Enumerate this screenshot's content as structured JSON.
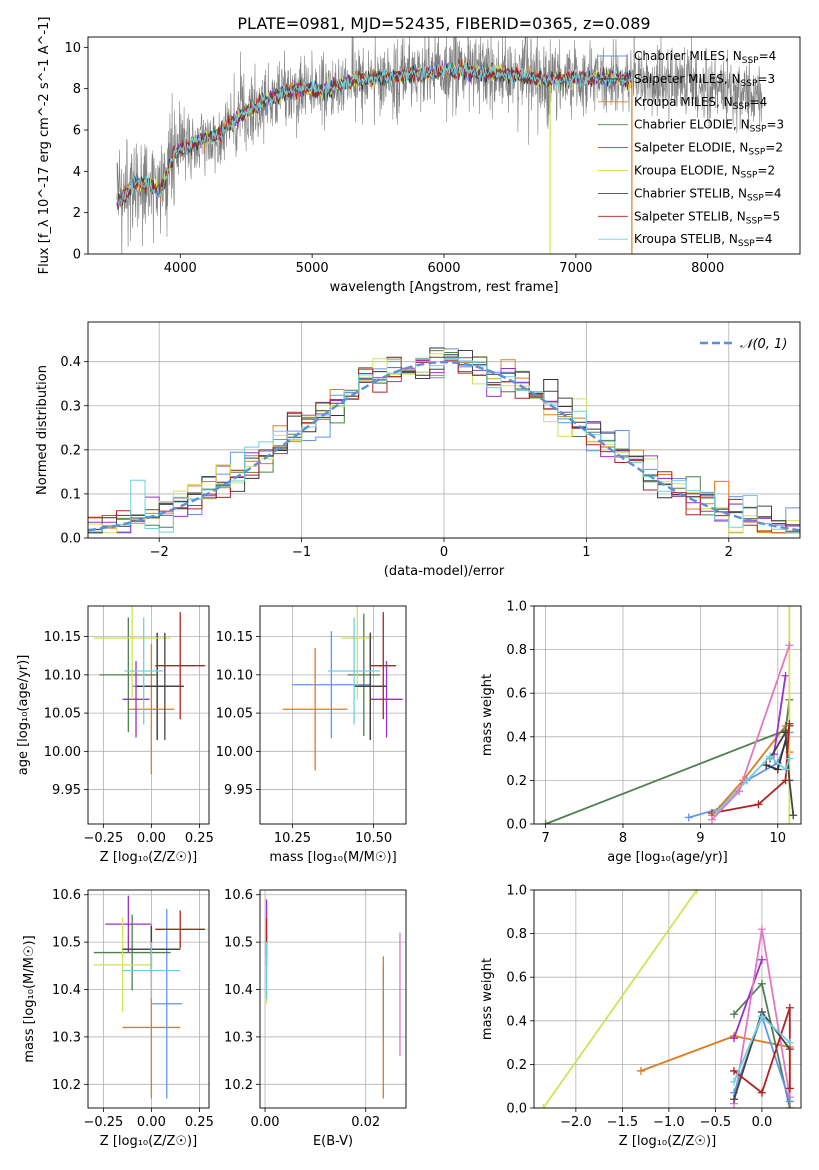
{
  "figure": {
    "title": "PLATE=0981, MJD=52435, FIBERID=0365, z=0.089"
  },
  "models": [
    {
      "key": "chabrier_miles",
      "label": "Chabrier MILES, N",
      "sub": "SSP",
      "n": "=4",
      "color": "#6495ed"
    },
    {
      "key": "salpeter_miles",
      "label": "Salpeter MILES, N",
      "sub": "SSP",
      "n": "=3",
      "color": "#333333"
    },
    {
      "key": "kroupa_miles",
      "label": "Kroupa MILES, N",
      "sub": "SSP",
      "n": "=4",
      "color": "#e07b20"
    },
    {
      "key": "chabrier_elodie",
      "label": "Chabrier ELODIE, N",
      "sub": "SSP",
      "n": "=3",
      "color": "#4f7f4f"
    },
    {
      "key": "salpeter_elodie",
      "label": "Salpeter ELODIE, N",
      "sub": "SSP",
      "n": "=2",
      "color": "#9932cc"
    },
    {
      "key": "kroupa_elodie",
      "label": "Kroupa ELODIE, N",
      "sub": "SSP",
      "n": "=2",
      "color": "#d4e157"
    },
    {
      "key": "chabrier_stelib",
      "label": "Chabrier STELIB, N",
      "sub": "SSP",
      "n": "=4",
      "color": "#444444"
    },
    {
      "key": "salpeter_stelib",
      "label": "Salpeter STELIB, N",
      "sub": "SSP",
      "n": "=5",
      "color": "#b22222"
    },
    {
      "key": "kroupa_stelib",
      "label": "Kroupa STELIB, N",
      "sub": "SSP",
      "n": "=4",
      "color": "#6fd0e0"
    }
  ],
  "chart_data": [
    {
      "id": "spectrum",
      "type": "line",
      "xlabel": "wavelength [Angstrom, rest frame]",
      "ylabel": "Flux [f_λ 10^-17 erg cm^-2 s^-1 A^-1]",
      "xlim": [
        3300,
        8700
      ],
      "ylim": [
        0,
        10.5
      ],
      "xticks": [
        4000,
        5000,
        6000,
        7000,
        8000
      ],
      "yticks": [
        0,
        2,
        4,
        6,
        8,
        10
      ],
      "data_color": "#808080",
      "legend": "top-right",
      "continuum": [
        [
          3550,
          2.6
        ],
        [
          3650,
          3.4
        ],
        [
          3750,
          3.4
        ],
        [
          3850,
          3.0
        ],
        [
          3950,
          4.8
        ],
        [
          4100,
          5.4
        ],
        [
          4300,
          5.8
        ],
        [
          4500,
          6.9
        ],
        [
          4700,
          7.6
        ],
        [
          4900,
          8.0
        ],
        [
          5100,
          7.9
        ],
        [
          5300,
          8.4
        ],
        [
          5500,
          8.5
        ],
        [
          5800,
          8.7
        ],
        [
          6000,
          8.9
        ],
        [
          6300,
          8.8
        ],
        [
          6600,
          8.6
        ],
        [
          6800,
          8.4
        ],
        [
          7000,
          8.5
        ],
        [
          7300,
          8.5
        ],
        [
          7500,
          8.3
        ],
        [
          7800,
          8.2
        ],
        [
          8100,
          7.9
        ],
        [
          8400,
          7.7
        ]
      ]
    },
    {
      "id": "residuals",
      "type": "step",
      "xlabel": "(data-model)/error",
      "ylabel": "Normed distribution",
      "xlim": [
        -2.5,
        2.5
      ],
      "ylim": [
        0,
        0.49
      ],
      "xticks": [
        -2,
        -1,
        0,
        1,
        2
      ],
      "yticks": [
        0.0,
        0.1,
        0.2,
        0.3,
        0.4
      ],
      "legend": "top-right",
      "reference": {
        "name": "𝒩(0, 1)",
        "mean": 0,
        "sigma": 1,
        "color": "#5b8fd6"
      },
      "bin_width": 0.1
    },
    {
      "id": "age_vs_Z",
      "type": "errorbar",
      "xlabel": "Z [log₁₀(Z/Z☉)]",
      "ylabel": "age  [log₁₀(age/yr)]",
      "xlim": [
        -0.33,
        0.3
      ],
      "ylim": [
        9.905,
        10.19
      ],
      "xticks": [
        -0.25,
        0.0,
        0.25
      ],
      "yticks": [
        9.95,
        10.0,
        10.05,
        10.1,
        10.15
      ],
      "points": [
        {
          "m": "chabrier_miles",
          "x": 0.03,
          "xerr": 0.13,
          "y": 10.085,
          "yerr": 0.07
        },
        {
          "m": "salpeter_miles",
          "x": 0.03,
          "xerr": 0.11,
          "y": 10.085,
          "yerr": 0.07
        },
        {
          "m": "kroupa_miles",
          "x": 0.0,
          "xerr": 0.12,
          "y": 10.055,
          "yerr": 0.085
        },
        {
          "m": "chabrier_elodie",
          "x": -0.12,
          "xerr": 0.15,
          "y": 10.1,
          "yerr": 0.075
        },
        {
          "m": "salpeter_elodie",
          "x": -0.08,
          "xerr": 0.07,
          "y": 10.068,
          "yerr": 0.05
        },
        {
          "m": "kroupa_elodie",
          "x": -0.1,
          "xerr": 0.2,
          "y": 10.148,
          "yerr": 0.08
        },
        {
          "m": "chabrier_stelib",
          "x": 0.07,
          "xerr": 0.1,
          "y": 10.085,
          "yerr": 0.07
        },
        {
          "m": "salpeter_stelib",
          "x": 0.15,
          "xerr": 0.13,
          "y": 10.112,
          "yerr": 0.07
        },
        {
          "m": "kroupa_stelib",
          "x": -0.04,
          "xerr": 0.1,
          "y": 10.105,
          "yerr": 0.07
        }
      ]
    },
    {
      "id": "age_vs_mass",
      "type": "errorbar",
      "xlabel": "mass [log₁₀(M/M☉)]",
      "ylabel": "",
      "xlim": [
        10.15,
        10.6
      ],
      "ylim": [
        9.905,
        10.19
      ],
      "xticks": [
        10.25,
        10.5
      ],
      "yticks": [
        9.95,
        10.0,
        10.05,
        10.1,
        10.15
      ],
      "points": [
        {
          "m": "chabrier_miles",
          "x": 10.37,
          "xerr": 0.12,
          "y": 10.087,
          "yerr": 0.07
        },
        {
          "m": "salpeter_miles",
          "x": 10.49,
          "xerr": 0.05,
          "y": 10.085,
          "yerr": 0.07
        },
        {
          "m": "kroupa_miles",
          "x": 10.32,
          "xerr": 0.1,
          "y": 10.055,
          "yerr": 0.08
        },
        {
          "m": "chabrier_elodie",
          "x": 10.47,
          "xerr": 0.05,
          "y": 10.1,
          "yerr": 0.08
        },
        {
          "m": "salpeter_elodie",
          "x": 10.54,
          "xerr": 0.05,
          "y": 10.068,
          "yerr": 0.05
        },
        {
          "m": "kroupa_elodie",
          "x": 10.45,
          "xerr": 0.05,
          "y": 10.148,
          "yerr": 0.08
        },
        {
          "m": "chabrier_stelib",
          "x": 10.49,
          "xerr": 0.05,
          "y": 10.085,
          "yerr": 0.07
        },
        {
          "m": "salpeter_stelib",
          "x": 10.53,
          "xerr": 0.04,
          "y": 10.112,
          "yerr": 0.07
        },
        {
          "m": "kroupa_stelib",
          "x": 10.44,
          "xerr": 0.08,
          "y": 10.105,
          "yerr": 0.07
        }
      ]
    },
    {
      "id": "weight_vs_age",
      "type": "line",
      "xlabel": "age  [log₁₀(age/yr)]",
      "ylabel": "mass weight",
      "xlim": [
        6.85,
        10.3
      ],
      "ylim": [
        0,
        1
      ],
      "xticks": [
        7,
        8,
        9,
        10
      ],
      "yticks": [
        0.0,
        0.2,
        0.4,
        0.6,
        0.8,
        1.0
      ],
      "series": [
        {
          "m": "chabrier_miles",
          "points": [
            [
              8.85,
              0.03
            ],
            [
              9.25,
              0.07
            ],
            [
              9.6,
              0.2
            ],
            [
              10.0,
              0.28
            ],
            [
              10.15,
              0.42
            ]
          ]
        },
        {
          "m": "salpeter_miles",
          "points": [
            [
              9.85,
              0.27
            ],
            [
              10.0,
              0.25
            ],
            [
              10.15,
              0.45
            ]
          ]
        },
        {
          "m": "kroupa_miles",
          "points": [
            [
              9.15,
              0.04
            ],
            [
              9.55,
              0.2
            ],
            [
              10.1,
              0.45
            ],
            [
              10.15,
              0.33
            ]
          ]
        },
        {
          "m": "chabrier_elodie",
          "points": [
            [
              7.0,
              0.0
            ],
            [
              10.1,
              0.43
            ],
            [
              10.15,
              0.57
            ]
          ]
        },
        {
          "m": "salpeter_elodie",
          "points": [
            [
              9.95,
              0.32
            ],
            [
              10.1,
              0.68
            ]
          ]
        },
        {
          "m": "kroupa_elodie",
          "points": [
            [
              10.15,
              0.0
            ],
            [
              10.15,
              1.0
            ]
          ]
        },
        {
          "m": "chabrier_stelib",
          "points": [
            [
              9.9,
              0.3
            ],
            [
              10.1,
              0.42
            ],
            [
              10.15,
              0.2
            ],
            [
              10.2,
              0.04
            ]
          ]
        },
        {
          "m": "salpeter_stelib",
          "points": [
            [
              9.15,
              0.05
            ],
            [
              9.75,
              0.09
            ],
            [
              10.1,
              0.2
            ],
            [
              10.15,
              0.46
            ]
          ]
        },
        {
          "m": "kroupa_stelib",
          "points": [
            [
              9.2,
              0.05
            ],
            [
              9.9,
              0.31
            ],
            [
              10.1,
              0.25
            ],
            [
              10.15,
              0.3
            ]
          ]
        },
        {
          "m": "pink",
          "color": "#e377c2",
          "points": [
            [
              9.15,
              0.02
            ],
            [
              9.5,
              0.15
            ],
            [
              10.15,
              0.82
            ]
          ]
        }
      ]
    },
    {
      "id": "mass_vs_Z",
      "type": "errorbar",
      "xlabel": "Z [log₁₀(Z/Z☉)]",
      "ylabel": "mass [log₁₀(M/M☉)]",
      "xlim": [
        -0.33,
        0.3
      ],
      "ylim": [
        10.15,
        10.61
      ],
      "xticks": [
        -0.25,
        0.0,
        0.25
      ],
      "yticks": [
        10.2,
        10.3,
        10.4,
        10.5,
        10.6
      ],
      "points": [
        {
          "m": "chabrier_miles",
          "x": 0.08,
          "xerr": 0.08,
          "y": 10.37,
          "yerr": 0.2
        },
        {
          "m": "salpeter_miles",
          "x": 0.0,
          "xerr": 0.15,
          "y": 10.485,
          "yerr": 0.05
        },
        {
          "m": "kroupa_miles",
          "x": 0.0,
          "xerr": 0.15,
          "y": 10.32,
          "yerr": 0.15
        },
        {
          "m": "chabrier_elodie",
          "x": -0.1,
          "xerr": 0.2,
          "y": 10.478,
          "yerr": 0.08
        },
        {
          "m": "salpeter_elodie",
          "x": -0.12,
          "xerr": 0.12,
          "y": 10.538,
          "yerr": 0.06
        },
        {
          "m": "kroupa_elodie",
          "x": -0.15,
          "xerr": 0.15,
          "y": 10.452,
          "yerr": 0.1
        },
        {
          "m": "chabrier_stelib",
          "x": 0.0,
          "xerr": 0.15,
          "y": 10.485,
          "yerr": 0.05
        },
        {
          "m": "salpeter_stelib",
          "x": 0.15,
          "xerr": 0.13,
          "y": 10.527,
          "yerr": 0.04
        },
        {
          "m": "kroupa_stelib",
          "x": 0.0,
          "xerr": 0.15,
          "y": 10.44,
          "yerr": 0.06
        }
      ]
    },
    {
      "id": "mass_vs_ebv",
      "type": "errorbar",
      "xlabel": "E(B-V)",
      "ylabel": "",
      "xlim": [
        -0.001,
        0.028
      ],
      "ylim": [
        10.15,
        10.61
      ],
      "xticks": [
        0.0,
        0.02
      ],
      "xtick_labels": [
        "0.00",
        "0.02"
      ],
      "yticks": [
        10.2,
        10.3,
        10.4,
        10.5,
        10.6
      ],
      "points": [
        {
          "m": "chabrier_miles",
          "x": 0.0235,
          "xerr": 0,
          "y": 10.37,
          "yerr": 0.08
        },
        {
          "m": "kroupa_miles",
          "x": 0.0235,
          "xerr": 0,
          "y": 10.32,
          "yerr": 0.15
        },
        {
          "m": "salpeter_elodie",
          "x": 0.0003,
          "xerr": 0,
          "y": 10.53,
          "yerr": 0.06
        },
        {
          "m": "kroupa_elodie",
          "x": 0.0003,
          "xerr": 0,
          "y": 10.45,
          "yerr": 0.08
        },
        {
          "m": "salpeter_stelib",
          "x": 0.0003,
          "xerr": 0,
          "y": 10.5,
          "yerr": 0.05
        },
        {
          "m": "kroupa_stelib",
          "x": 0.0003,
          "xerr": 0,
          "y": 10.44,
          "yerr": 0.06
        },
        {
          "m": "pink",
          "color": "#e377c2",
          "x": 0.0268,
          "xerr": 0,
          "y": 10.39,
          "yerr": 0.13
        }
      ]
    },
    {
      "id": "weight_vs_Z",
      "type": "line",
      "xlabel": "Z [log₁₀(Z/Z☉)]",
      "ylabel": "mass weight",
      "xlim": [
        -2.45,
        0.42
      ],
      "ylim": [
        0,
        1
      ],
      "xticks": [
        -2.0,
        -1.5,
        -1.0,
        -0.5,
        0.0
      ],
      "yticks": [
        0.0,
        0.2,
        0.4,
        0.6,
        0.8,
        1.0
      ],
      "series": [
        {
          "m": "kroupa_elodie",
          "points": [
            [
              -2.35,
              0.0
            ],
            [
              -0.7,
              1.0
            ]
          ]
        },
        {
          "m": "kroupa_miles",
          "points": [
            [
              -1.3,
              0.17
            ],
            [
              -0.3,
              0.33
            ],
            [
              0.3,
              0.28
            ],
            [
              0.3,
              0.0
            ]
          ]
        },
        {
          "m": "chabrier_elodie",
          "points": [
            [
              -0.3,
              0.43
            ],
            [
              0.0,
              0.57
            ],
            [
              0.3,
              0.0
            ]
          ]
        },
        {
          "m": "salpeter_elodie",
          "points": [
            [
              -0.3,
              0.32
            ],
            [
              0.0,
              0.68
            ]
          ]
        },
        {
          "m": "pink",
          "color": "#e377c2",
          "points": [
            [
              -0.3,
              0.02
            ],
            [
              0.0,
              0.82
            ],
            [
              0.3,
              0.05
            ]
          ]
        },
        {
          "m": "chabrier_miles",
          "points": [
            [
              -0.3,
              0.07
            ],
            [
              0.0,
              0.42
            ],
            [
              0.3,
              0.03
            ]
          ]
        },
        {
          "m": "chabrier_stelib",
          "points": [
            [
              -0.3,
              0.04
            ],
            [
              0.0,
              0.44
            ],
            [
              0.3,
              0.27
            ]
          ]
        },
        {
          "m": "salpeter_stelib",
          "points": [
            [
              -0.3,
              0.17
            ],
            [
              0.0,
              0.07
            ],
            [
              0.3,
              0.46
            ],
            [
              0.3,
              0.09
            ]
          ]
        },
        {
          "m": "kroupa_stelib",
          "points": [
            [
              -0.3,
              0.12
            ],
            [
              0.0,
              0.42
            ],
            [
              0.3,
              0.3
            ]
          ]
        }
      ]
    }
  ]
}
